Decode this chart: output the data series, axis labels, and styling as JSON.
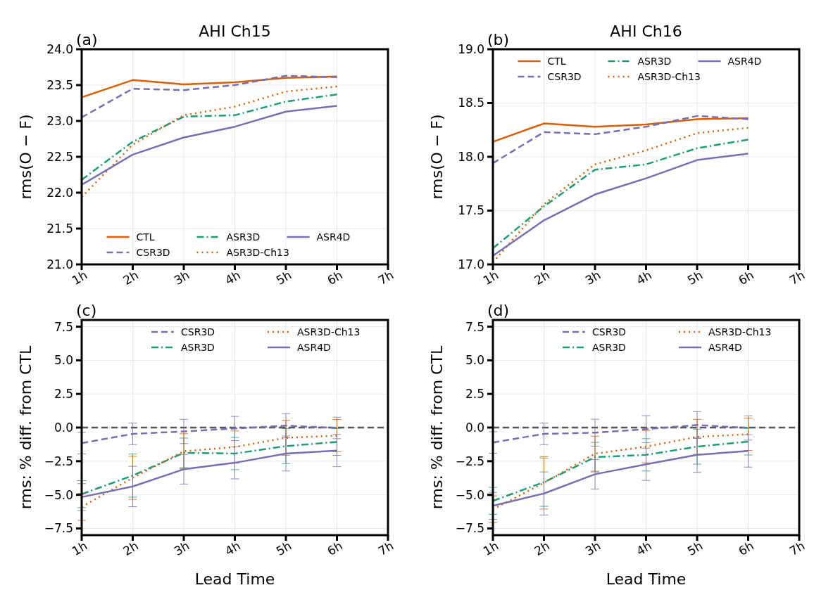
{
  "chart_data": [
    {
      "type": "line",
      "title": "AHI Ch15",
      "ylabel": "rms(O − F)",
      "annotations": [
        "(a)"
      ],
      "x": [
        1,
        2,
        3,
        4,
        5,
        6
      ],
      "xlim": [
        1,
        7
      ],
      "xticks": [
        {
          "value": 1,
          "label": "1h"
        },
        {
          "value": 2,
          "label": "2h"
        },
        {
          "value": 3,
          "label": "3h"
        },
        {
          "value": 4,
          "label": "4h"
        },
        {
          "value": 5,
          "label": "5h"
        },
        {
          "value": 6,
          "label": "6h"
        },
        {
          "value": 7,
          "label": "7h"
        }
      ],
      "ylim": [
        21,
        24
      ],
      "yticks": [
        {
          "value": 21,
          "label": "21.0"
        },
        21.5,
        {
          "value": 22,
          "label": "22.0"
        },
        22.5,
        {
          "value": 23,
          "label": "23.0"
        },
        23.5,
        {
          "value": 24,
          "label": "24.0"
        }
      ],
      "grid": true,
      "legend": "bottom",
      "series": [
        {
          "name": "CTL",
          "color": "#d95f02",
          "line_style": "solid",
          "values": [
            23.33,
            23.57,
            23.51,
            23.54,
            23.6,
            23.62
          ]
        },
        {
          "name": "CSR3D",
          "color": "#7570b3",
          "line_style": "dashed",
          "values": [
            23.05,
            23.45,
            23.43,
            23.5,
            23.63,
            23.61
          ]
        },
        {
          "name": "ASR3D",
          "color": "#1b9e77",
          "line_style": "dashdot",
          "values": [
            22.18,
            22.71,
            23.06,
            23.08,
            23.27,
            23.37
          ]
        },
        {
          "name": "ASR3D-Ch13",
          "color": "#d95f02",
          "line_style": "dotted",
          "values": [
            21.94,
            22.67,
            23.08,
            23.2,
            23.41,
            23.48
          ]
        },
        {
          "name": "ASR4D",
          "color": "#7570b3",
          "line_style": "solid",
          "values": [
            22.11,
            22.53,
            22.77,
            22.92,
            23.13,
            23.21
          ]
        }
      ]
    },
    {
      "type": "line",
      "title": "AHI Ch16",
      "ylabel": "rms(O − F)",
      "annotations": [
        "(b)"
      ],
      "x": [
        1,
        2,
        3,
        4,
        5,
        6
      ],
      "xlim": [
        1,
        7
      ],
      "xticks": [
        {
          "value": 1,
          "label": "1h"
        },
        {
          "value": 2,
          "label": "2h"
        },
        {
          "value": 3,
          "label": "3h"
        },
        {
          "value": 4,
          "label": "4h"
        },
        {
          "value": 5,
          "label": "5h"
        },
        {
          "value": 6,
          "label": "6h"
        },
        {
          "value": 7,
          "label": "7h"
        }
      ],
      "ylim": [
        17,
        19
      ],
      "yticks": [
        {
          "value": 17,
          "label": "17.0"
        },
        17.5,
        {
          "value": 18,
          "label": "18.0"
        },
        18.5,
        {
          "value": 19,
          "label": "19.0"
        }
      ],
      "grid": true,
      "legend": "top",
      "series": [
        {
          "name": "CTL",
          "color": "#d95f02",
          "line_style": "solid",
          "values": [
            18.14,
            18.31,
            18.28,
            18.3,
            18.35,
            18.36
          ]
        },
        {
          "name": "CSR3D",
          "color": "#7570b3",
          "line_style": "dashed",
          "values": [
            17.94,
            18.23,
            18.21,
            18.28,
            18.38,
            18.35
          ]
        },
        {
          "name": "ASR3D",
          "color": "#1b9e77",
          "line_style": "dashdot",
          "values": [
            17.15,
            17.54,
            17.88,
            17.93,
            18.08,
            18.16
          ]
        },
        {
          "name": "ASR3D-Ch13",
          "color": "#d95f02",
          "line_style": "dotted",
          "values": [
            17.02,
            17.56,
            17.93,
            18.06,
            18.22,
            18.27
          ]
        },
        {
          "name": "ASR4D",
          "color": "#7570b3",
          "line_style": "solid",
          "values": [
            17.08,
            17.41,
            17.65,
            17.8,
            17.97,
            18.03
          ]
        }
      ]
    },
    {
      "type": "line",
      "ylabel": "rms: % diff. from CTL",
      "xlabel": "Lead Time",
      "annotations": [
        "(c)"
      ],
      "x": [
        1,
        2,
        3,
        4,
        5,
        6
      ],
      "xlim": [
        1,
        7
      ],
      "xticks": [
        {
          "value": 1,
          "label": "1h"
        },
        {
          "value": 2,
          "label": "2h"
        },
        {
          "value": 3,
          "label": "3h"
        },
        {
          "value": 4,
          "label": "4h"
        },
        {
          "value": 5,
          "label": "5h"
        },
        {
          "value": 6,
          "label": "6h"
        },
        {
          "value": 7,
          "label": "7h"
        }
      ],
      "ylim": [
        -8,
        8
      ],
      "yticks": [
        {
          "value": -7.5,
          "label": "−7.5"
        },
        {
          "value": -5,
          "label": "−5.0"
        },
        {
          "value": -2.5,
          "label": "−2.5"
        },
        {
          "value": 0,
          "label": "0.0"
        },
        2.5,
        {
          "value": 5,
          "label": "5.0"
        },
        7.5
      ],
      "grid": true,
      "legend": "top right",
      "ref_lines": [
        {
          "axis": "y",
          "value": 0,
          "color": "#555555",
          "line_style": "dashed"
        }
      ],
      "series": [
        {
          "name": "CSR3D",
          "color": "#7570b3",
          "line_style": "dashed",
          "values": [
            -1.16,
            -0.47,
            -0.29,
            -0.07,
            0.14,
            -0.03
          ],
          "errors": [
            0.8,
            0.8,
            0.9,
            0.9,
            0.9,
            0.8
          ]
        },
        {
          "name": "ASR3D",
          "color": "#1b9e77",
          "line_style": "dashdot",
          "values": [
            -4.95,
            -3.57,
            -1.88,
            -1.93,
            -1.38,
            -1.07
          ],
          "errors": [
            1.0,
            1.6,
            1.1,
            1.2,
            1.3,
            1.0
          ]
        },
        {
          "name": "ASR3D-Ch13",
          "color": "#d95f02",
          "line_style": "dotted",
          "values": [
            -5.9,
            -3.74,
            -1.76,
            -1.45,
            -0.76,
            -0.6
          ],
          "errors": [
            1.0,
            1.6,
            1.3,
            1.2,
            1.3,
            1.2
          ]
        },
        {
          "name": "ASR4D",
          "color": "#7570b3",
          "line_style": "solid",
          "values": [
            -5.17,
            -4.38,
            -3.1,
            -2.62,
            -1.93,
            -1.71
          ],
          "errors": [
            1.0,
            1.5,
            1.1,
            1.2,
            1.3,
            1.2
          ]
        }
      ]
    },
    {
      "type": "line",
      "ylabel": "rms: % diff. from CTL",
      "xlabel": "Lead Time",
      "annotations": [
        "(d)"
      ],
      "x": [
        1,
        2,
        3,
        4,
        5,
        6
      ],
      "xlim": [
        1,
        7
      ],
      "xticks": [
        {
          "value": 1,
          "label": "1h"
        },
        {
          "value": 2,
          "label": "2h"
        },
        {
          "value": 3,
          "label": "3h"
        },
        {
          "value": 4,
          "label": "4h"
        },
        {
          "value": 5,
          "label": "5h"
        },
        {
          "value": 6,
          "label": "6h"
        },
        {
          "value": 7,
          "label": "7h"
        }
      ],
      "ylim": [
        -8,
        8
      ],
      "yticks": [
        {
          "value": -7.5,
          "label": "−7.5"
        },
        {
          "value": -5,
          "label": "−5.0"
        },
        {
          "value": -2.5,
          "label": "−2.5"
        },
        {
          "value": 0,
          "label": "0.0"
        },
        2.5,
        {
          "value": 5,
          "label": "5.0"
        },
        7.5
      ],
      "grid": true,
      "legend": "top right",
      "ref_lines": [
        {
          "axis": "y",
          "value": 0,
          "color": "#555555",
          "line_style": "dashed"
        }
      ],
      "series": [
        {
          "name": "CSR3D",
          "color": "#7570b3",
          "line_style": "dashed",
          "values": [
            -1.11,
            -0.47,
            -0.38,
            -0.12,
            0.19,
            -0.03
          ],
          "errors": [
            0.8,
            0.8,
            1.0,
            1.0,
            1.0,
            0.9
          ]
        },
        {
          "name": "ASR3D",
          "color": "#1b9e77",
          "line_style": "dashdot",
          "values": [
            -5.45,
            -4.06,
            -2.2,
            -2.03,
            -1.42,
            -1.04
          ],
          "errors": [
            1.0,
            1.8,
            1.1,
            1.2,
            1.3,
            1.0
          ]
        },
        {
          "name": "ASR3D-Ch13",
          "color": "#d95f02",
          "line_style": "dotted",
          "values": [
            -6.08,
            -4.11,
            -1.94,
            -1.42,
            -0.69,
            -0.5
          ],
          "errors": [
            1.0,
            1.95,
            1.3,
            1.2,
            1.3,
            1.2
          ]
        },
        {
          "name": "ASR4D",
          "color": "#7570b3",
          "line_style": "solid",
          "values": [
            -5.82,
            -4.9,
            -3.47,
            -2.73,
            -2.03,
            -1.74
          ],
          "errors": [
            1.0,
            1.6,
            1.1,
            1.2,
            1.3,
            1.2
          ]
        }
      ]
    }
  ]
}
